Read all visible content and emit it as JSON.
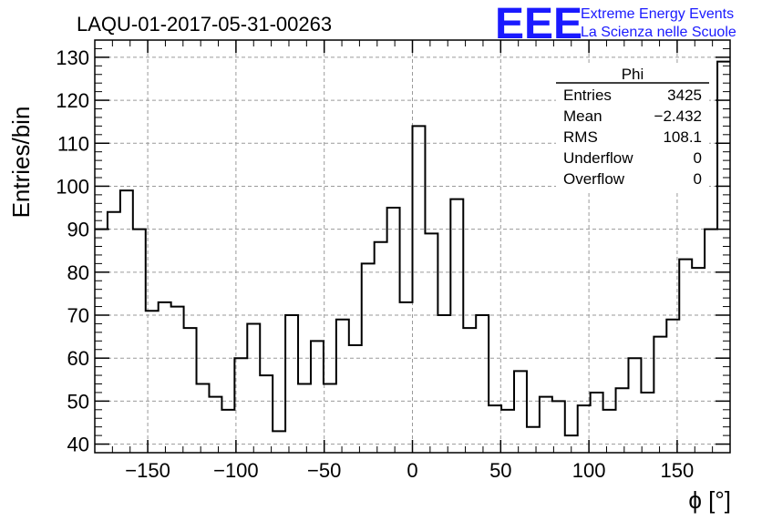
{
  "chart_data": {
    "type": "histogram",
    "title": "LAQU-01-2017-05-31-00263",
    "xlabel": "ϕ [°]",
    "ylabel": "Entries/bin",
    "xlim": [
      -180,
      180
    ],
    "ylim": [
      38,
      134
    ],
    "grid": true,
    "bin_width": 7.2,
    "x_ticks": [
      -150,
      -100,
      -50,
      0,
      50,
      100,
      150
    ],
    "x_tick_labels": [
      "−150",
      "−100",
      "−50",
      "0",
      "50",
      "100",
      "150"
    ],
    "y_ticks": [
      40,
      50,
      60,
      70,
      80,
      90,
      100,
      110,
      120,
      130
    ],
    "y_tick_labels": [
      "40",
      "50",
      "60",
      "70",
      "80",
      "90",
      "100",
      "110",
      "120",
      "130"
    ],
    "values": [
      90,
      94,
      99,
      90,
      71,
      73,
      72,
      67,
      54,
      51,
      48,
      60,
      68,
      56,
      43,
      70,
      54,
      64,
      54,
      69,
      63,
      82,
      87,
      95,
      73,
      114,
      89,
      70,
      97,
      67,
      70,
      49,
      48,
      57,
      44,
      51,
      50,
      42,
      49,
      52,
      48,
      53,
      60,
      52,
      65,
      69,
      83,
      81,
      90,
      129
    ],
    "stats_box": {
      "title": "Phi",
      "rows": [
        {
          "label": "Entries",
          "value": "3425"
        },
        {
          "label": "Mean",
          "value": "−2.432"
        },
        {
          "label": "RMS",
          "value": "108.1"
        },
        {
          "label": "Underflow",
          "value": "0"
        },
        {
          "label": "Overflow",
          "value": "0"
        }
      ]
    }
  },
  "logo": {
    "mark": "EEE",
    "line1": "Extreme Energy Events",
    "line2": "La Scienza nelle Scuole",
    "color": "#1a1aff"
  }
}
